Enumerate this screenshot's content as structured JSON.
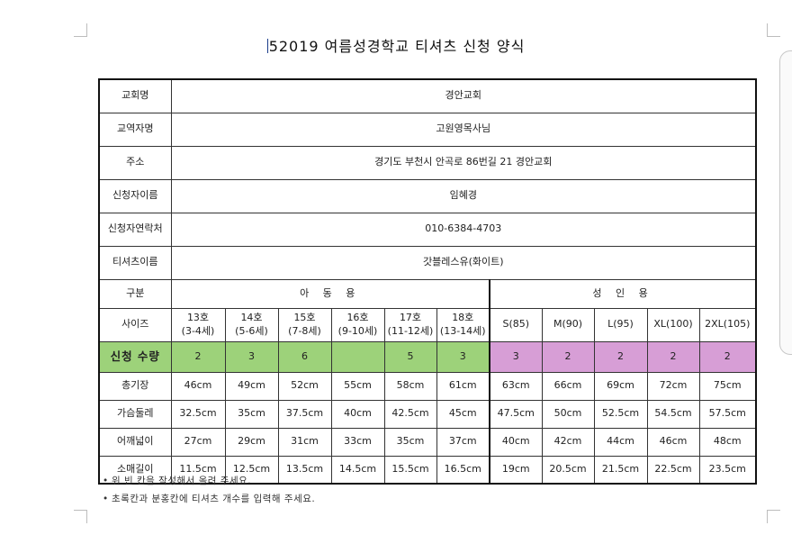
{
  "title": "52019 여름성경학교 티셔츠 신청 양식",
  "info_rows": [
    {
      "label": "교회명",
      "value": "경안교회"
    },
    {
      "label": "교역자명",
      "value": "고원영목사님"
    },
    {
      "label": "주소",
      "value": "경기도 부천시 안곡로 86번길 21  경안교회"
    },
    {
      "label": "신청자이름",
      "value": "임혜경"
    },
    {
      "label": "신청자연락처",
      "value": "010-6384-4703"
    },
    {
      "label": "티셔츠이름",
      "value": "갓블레스유(화이트)"
    }
  ],
  "category": {
    "label": "구분",
    "child": "아 동 용",
    "adult": "성 인 용"
  },
  "size_row": {
    "label": "사이즈",
    "child_sizes": [
      {
        "size": "13호",
        "age": "(3-4세)"
      },
      {
        "size": "14호",
        "age": "(5-6세)"
      },
      {
        "size": "15호",
        "age": "(7-8세)"
      },
      {
        "size": "16호",
        "age": "(9-10세)"
      },
      {
        "size": "17호",
        "age": "(11-12세)"
      },
      {
        "size": "18호",
        "age": "(13-14세)"
      }
    ],
    "adult_sizes": [
      "S(85)",
      "M(90)",
      "L(95)",
      "XL(100)",
      "2XL(105)"
    ]
  },
  "quantity_row": {
    "label": "신청 수량",
    "values": [
      "2",
      "3",
      "6",
      "",
      "5",
      "3",
      "3",
      "2",
      "2",
      "2",
      "2"
    ]
  },
  "measure_rows": [
    {
      "label": "총기장",
      "values": [
        "46cm",
        "49cm",
        "52cm",
        "55cm",
        "58cm",
        "61cm",
        "63cm",
        "66cm",
        "69cm",
        "72cm",
        "75cm"
      ]
    },
    {
      "label": "가슴둘레",
      "values": [
        "32.5cm",
        "35cm",
        "37.5cm",
        "40cm",
        "42.5cm",
        "45cm",
        "47.5cm",
        "50cm",
        "52.5cm",
        "54.5cm",
        "57.5cm"
      ]
    },
    {
      "label": "어깨넓이",
      "values": [
        "27cm",
        "29cm",
        "31cm",
        "33cm",
        "35cm",
        "37cm",
        "40cm",
        "42cm",
        "44cm",
        "46cm",
        "48cm"
      ]
    },
    {
      "label": "소매길이",
      "values": [
        "11.5cm",
        "12.5cm",
        "13.5cm",
        "14.5cm",
        "15.5cm",
        "16.5cm",
        "19cm",
        "20.5cm",
        "21.5cm",
        "22.5cm",
        "23.5cm"
      ]
    }
  ],
  "notes": [
    "위 빈 칸을 작성해서 올려 주세요.",
    "초록칸과 분홍칸에 티셔츠 개수를 입력해 주세요."
  ],
  "colors": {
    "child_qty": "#9dd27a",
    "adult_qty": "#d79ed6",
    "border": "#111111"
  }
}
